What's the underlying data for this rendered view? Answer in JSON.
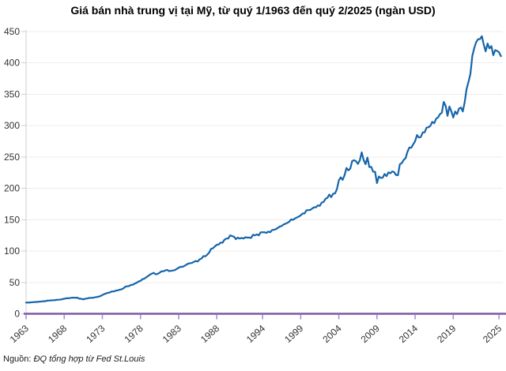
{
  "title": "Giá bán nhà trung vị tại Mỹ, từ quý 1/1963 đến quý 2/2025 (ngàn USD)",
  "source": {
    "prefix": "Nguồn:",
    "text": "ĐQ tổng hợp từ  Fed St.Louis"
  },
  "colors": {
    "line": "#1565ab",
    "x_axis": "#7e57a5",
    "x_tick": "#a98fd0",
    "y_axis": "#cfcfcf",
    "grid": "#ededed",
    "tick_label": "#333333"
  },
  "chart_data": {
    "type": "line",
    "title": "Giá bán nhà trung vị tại Mỹ, từ quý 1/1963 đến quý 2/2025 (ngàn USD)",
    "xlabel": "",
    "ylabel": "",
    "unit": "thousand USD",
    "frequency": "quarterly",
    "start": "1963Q1",
    "end": "2025Q2",
    "xlim": [
      1963,
      2025.5
    ],
    "ylim": [
      0,
      450
    ],
    "grid": "horizontal",
    "legend": null,
    "y_ticks": [
      0,
      50,
      100,
      150,
      200,
      250,
      300,
      350,
      400,
      450
    ],
    "x_tick_years": [
      1963,
      1968,
      1973,
      1978,
      1983,
      1988,
      1994,
      1999,
      2004,
      2009,
      2014,
      2019,
      2025
    ],
    "x_tick_labels": [
      "1963",
      "1968",
      "1973",
      "1978",
      "1983",
      "1988",
      "1994",
      "1999",
      "2004",
      "2009",
      "2014",
      "2019",
      "2025"
    ],
    "values": [
      17.8,
      18.0,
      17.9,
      18.5,
      18.5,
      18.9,
      18.9,
      19.4,
      19.6,
      20.0,
      20.0,
      20.9,
      21.0,
      21.4,
      21.5,
      21.7,
      22.2,
      22.4,
      22.6,
      23.3,
      23.9,
      24.7,
      24.7,
      25.1,
      25.6,
      25.7,
      25.5,
      25.6,
      23.9,
      23.9,
      22.9,
      24.0,
      24.3,
      25.2,
      25.4,
      25.5,
      26.2,
      26.7,
      27.3,
      28.3,
      29.9,
      31.4,
      32.5,
      33.5,
      34.0,
      35.8,
      35.5,
      36.9,
      37.3,
      38.3,
      39.0,
      40.4,
      43.1,
      43.8,
      44.2,
      46.0,
      46.3,
      48.2,
      49.5,
      51.5,
      52.5,
      55.1,
      56.0,
      58.1,
      60.3,
      62.5,
      64.1,
      65.2,
      62.9,
      63.7,
      65.4,
      67.7,
      67.8,
      69.1,
      69.9,
      68.0,
      68.5,
      69.0,
      69.6,
      71.6,
      73.3,
      74.9,
      74.9,
      76.2,
      78.2,
      79.9,
      80.6,
      81.1,
      82.8,
      84.1,
      83.3,
      86.8,
      88.1,
      92.0,
      91.6,
      94.3,
      97.5,
      103.5,
      104.5,
      107.5,
      110.0,
      110.5,
      113.5,
      113.3,
      118.0,
      120.0,
      120.0,
      125.0,
      123.9,
      122.9,
      119.0,
      121.5,
      119.9,
      121.0,
      120.0,
      122.0,
      121.5,
      121.5,
      121.0,
      126.0,
      125.0,
      126.5,
      125.0,
      129.9,
      130.0,
      130.0,
      129.0,
      131.0,
      130.0,
      133.5,
      134.0,
      134.9,
      137.0,
      139.0,
      140.0,
      142.3,
      143.5,
      145.0,
      146.8,
      150.5,
      149.9,
      152.0,
      153.5,
      155.0,
      157.0,
      159.9,
      160.0,
      165.0,
      165.3,
      165.5,
      167.8,
      169.8,
      169.8,
      172.9,
      172.0,
      177.3,
      178.3,
      183.2,
      185.0,
      190.1,
      186.0,
      191.4,
      191.9,
      198.8,
      212.7,
      217.6,
      213.5,
      221.0,
      232.5,
      228.7,
      231.5,
      243.6,
      244.9,
      243.1,
      239.0,
      244.7,
      257.4,
      245.3,
      238.5,
      249.1,
      233.9,
      234.3,
      226.6,
      226.4,
      208.4,
      219.0,
      216.7,
      216.9,
      222.9,
      219.5,
      225.5,
      224.0,
      226.9,
      226.0,
      221.2,
      221.0,
      238.4,
      240.2,
      245.4,
      248.0,
      258.4,
      265.1,
      264.8,
      270.2,
      275.2,
      285.0,
      281.0,
      282.0,
      289.2,
      289.4,
      296.8,
      297.4,
      299.8,
      306.0,
      303.8,
      310.9,
      313.1,
      318.2,
      320.5,
      337.9,
      331.8,
      315.6,
      330.6,
      322.8,
      313.0,
      322.5,
      318.4,
      327.1,
      329.0,
      322.6,
      337.5,
      358.7,
      369.8,
      382.6,
      411.2,
      423.6,
      433.1,
      437.7,
      438.0,
      442.6,
      429.0,
      418.5,
      431.0,
      423.2,
      426.8,
      412.3,
      420.4,
      419.2,
      416.9,
      410.8
    ]
  }
}
